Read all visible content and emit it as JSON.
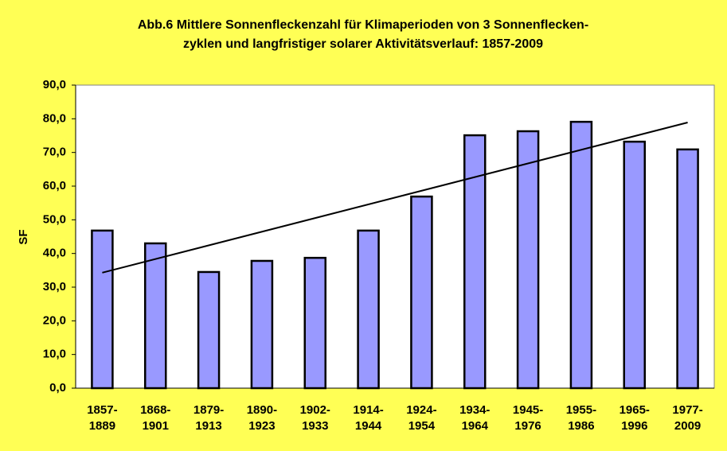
{
  "chart_data": {
    "type": "bar",
    "title": [
      "Abb.6 Mittlere Sonnenfleckenzahl für Klimaperioden von 3 Sonnenflecken-",
      "zyklen und langfristiger solarer Aktivitätsverlauf: 1857-2009"
    ],
    "y_label": "SF",
    "categories": [
      [
        "1857-",
        "1889"
      ],
      [
        "1868-",
        "1901"
      ],
      [
        "1879-",
        "1913"
      ],
      [
        "1890-",
        "1923"
      ],
      [
        "1902-",
        "1933"
      ],
      [
        "1914-",
        "1944"
      ],
      [
        "1924-",
        "1954"
      ],
      [
        "1934-",
        "1964"
      ],
      [
        "1945-",
        "1976"
      ],
      [
        "1955-",
        "1986"
      ],
      [
        "1965-",
        "1996"
      ],
      [
        "1977-",
        "2009"
      ]
    ],
    "values": [
      46.8,
      43.0,
      34.5,
      37.8,
      38.7,
      46.8,
      56.9,
      75.1,
      76.3,
      79.1,
      73.2,
      70.9
    ],
    "color": "#9999ff",
    "trendline": {
      "start": 34.3,
      "end": 78.9,
      "color": "#000000"
    },
    "ylim": [
      0,
      90
    ],
    "yticks": [
      {
        "value": 0,
        "label": "0,0"
      },
      {
        "value": 10,
        "label": "10,0"
      },
      {
        "value": 20,
        "label": "20,0"
      },
      {
        "value": 30,
        "label": "30,0"
      },
      {
        "value": 40,
        "label": "40,0"
      },
      {
        "value": 50,
        "label": "50,0"
      },
      {
        "value": 60,
        "label": "60,0"
      },
      {
        "value": 70,
        "label": "70,0"
      },
      {
        "value": 80,
        "label": "80,0"
      },
      {
        "value": 90,
        "label": "90,0"
      }
    ],
    "grid": false
  }
}
